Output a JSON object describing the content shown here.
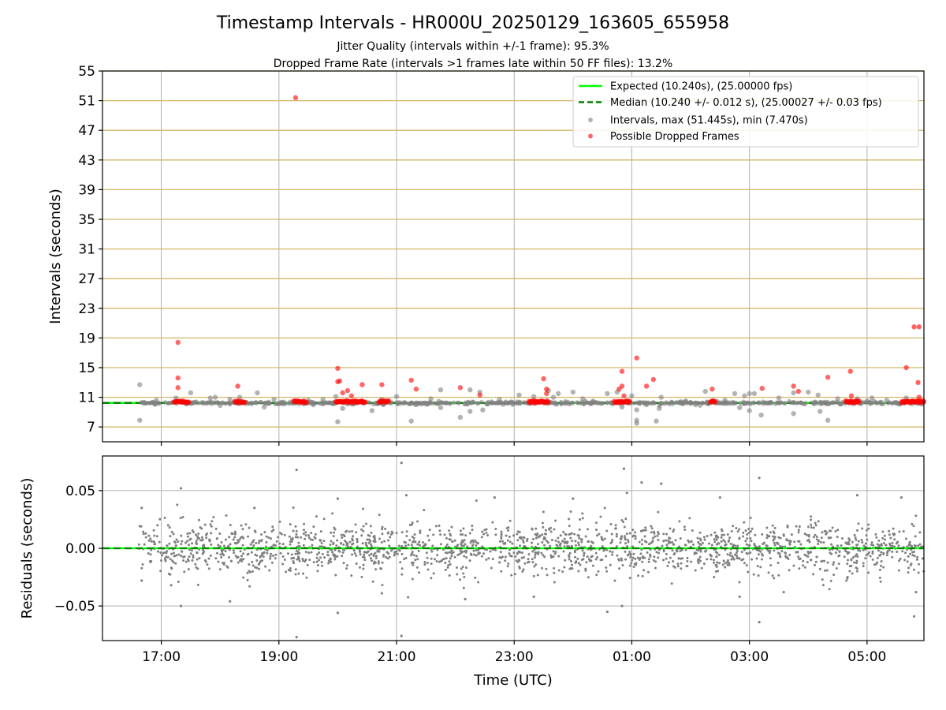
{
  "chart_data": [
    {
      "type": "scatter",
      "title": "Timestamp Intervals - HR000U_20250129_163605_655958",
      "subtitle_lines": [
        "Jitter Quality (intervals within +/-1 frame): 95.3%",
        "Dropped Frame Rate (intervals >1 frames late within 50 FF files): 13.2%"
      ],
      "xlabel": "",
      "ylabel": "Intervals (seconds)",
      "x_is_time_utc": true,
      "xlim": [
        "16:00",
        "05:58"
      ],
      "ylim": [
        5.0,
        55.0
      ],
      "yticks": [
        7,
        11,
        15,
        19,
        23,
        27,
        31,
        35,
        39,
        43,
        47,
        51,
        55
      ],
      "grid": true,
      "horizontal_bands_color": "#d4b66a",
      "legend_position": "top-right",
      "legend": [
        "Expected (10.240s), (25.00000 fps)",
        "Median (10.240 +/- 0.012 s), (25.00027 +/- 0.03 fps)",
        "Intervals, max (51.445s), min (7.470s)",
        "Possible Dropped Frames"
      ],
      "expected_interval": 10.24,
      "median_interval": 10.24,
      "series": [
        {
          "name": "Intervals, max (51.445s), min (7.470s)",
          "color": "#808080",
          "points": [
            [
              "16:38",
              12.7
            ],
            [
              "16:38",
              7.9
            ],
            [
              "16:55",
              10.6
            ],
            [
              "17:15",
              10.9
            ],
            [
              "17:30",
              11.6
            ],
            [
              "17:50",
              10.9
            ],
            [
              "17:55",
              11.0
            ],
            [
              "18:00",
              9.9
            ],
            [
              "18:10",
              10.7
            ],
            [
              "18:20",
              11.0
            ],
            [
              "18:38",
              11.6
            ],
            [
              "18:45",
              9.7
            ],
            [
              "18:55",
              10.7
            ],
            [
              "19:30",
              10.6
            ],
            [
              "19:35",
              10.0
            ],
            [
              "19:45",
              10.7
            ],
            [
              "19:58",
              11.1
            ],
            [
              "20:00",
              7.7
            ],
            [
              "20:05",
              9.5
            ],
            [
              "20:35",
              9.2
            ],
            [
              "20:45",
              10.7
            ],
            [
              "21:00",
              11.1
            ],
            [
              "21:15",
              7.8
            ],
            [
              "21:20",
              10.0
            ],
            [
              "21:35",
              10.8
            ],
            [
              "21:45",
              12.0
            ],
            [
              "21:45",
              9.6
            ],
            [
              "22:05",
              8.3
            ],
            [
              "22:15",
              12.0
            ],
            [
              "22:15",
              9.1
            ],
            [
              "22:25",
              11.7
            ],
            [
              "22:28",
              9.3
            ],
            [
              "22:45",
              10.7
            ],
            [
              "23:05",
              11.3
            ],
            [
              "23:20",
              11.1
            ],
            [
              "23:35",
              11.9
            ],
            [
              "23:40",
              11.0
            ],
            [
              "23:45",
              11.5
            ],
            [
              "24:00",
              11.7
            ],
            [
              "24:10",
              10.8
            ],
            [
              "24:35",
              11.5
            ],
            [
              "24:45",
              11.7
            ],
            [
              "24:50",
              9.7
            ],
            [
              "25:00",
              11.2
            ],
            [
              "25:05",
              9.3
            ],
            [
              "25:05",
              7.9
            ],
            [
              "25:05",
              7.5
            ],
            [
              "25:15",
              10.0
            ],
            [
              "25:25",
              7.8
            ],
            [
              "25:28",
              9.5
            ],
            [
              "25:30",
              11.0
            ],
            [
              "25:55",
              10.5
            ],
            [
              "26:05",
              10.0
            ],
            [
              "26:15",
              11.8
            ],
            [
              "26:35",
              10.6
            ],
            [
              "26:45",
              11.5
            ],
            [
              "26:50",
              9.6
            ],
            [
              "26:55",
              11.2
            ],
            [
              "27:00",
              11.5
            ],
            [
              "27:00",
              9.2
            ],
            [
              "27:05",
              11.5
            ],
            [
              "27:12",
              8.6
            ],
            [
              "27:30",
              10.9
            ],
            [
              "27:45",
              11.6
            ],
            [
              "27:45",
              8.8
            ],
            [
              "28:00",
              11.7
            ],
            [
              "28:10",
              11.3
            ],
            [
              "28:12",
              9.1
            ],
            [
              "28:20",
              7.9
            ],
            [
              "28:30",
              10.8
            ],
            [
              "28:50",
              10.8
            ],
            [
              "29:00",
              10.5
            ],
            [
              "29:05",
              10.9
            ],
            [
              "29:20",
              10.6
            ],
            [
              "29:40",
              10.9
            ]
          ]
        },
        {
          "name": "Possible Dropped Frames",
          "color": "#ff0000",
          "points": [
            [
              "17:17",
              18.4
            ],
            [
              "17:17",
              13.6
            ],
            [
              "17:17",
              12.3
            ],
            [
              "18:18",
              12.5
            ],
            [
              "19:17",
              51.4
            ],
            [
              "20:00",
              14.9
            ],
            [
              "20:00",
              13.1
            ],
            [
              "20:02",
              13.2
            ],
            [
              "20:05",
              11.6
            ],
            [
              "20:10",
              11.9
            ],
            [
              "20:14",
              11.2
            ],
            [
              "20:25",
              12.7
            ],
            [
              "20:45",
              12.7
            ],
            [
              "21:15",
              13.3
            ],
            [
              "21:20",
              12.1
            ],
            [
              "22:05",
              12.3
            ],
            [
              "22:25",
              11.3
            ],
            [
              "23:30",
              13.5
            ],
            [
              "23:33",
              12.1
            ],
            [
              "23:33",
              11.5
            ],
            [
              "24:47",
              12.1
            ],
            [
              "24:50",
              14.5
            ],
            [
              "24:50",
              12.5
            ],
            [
              "24:52",
              11.2
            ],
            [
              "25:05",
              16.3
            ],
            [
              "25:15",
              12.5
            ],
            [
              "25:22",
              13.4
            ],
            [
              "26:22",
              12.1
            ],
            [
              "27:13",
              12.2
            ],
            [
              "27:45",
              12.5
            ],
            [
              "27:50",
              11.8
            ],
            [
              "28:20",
              13.7
            ],
            [
              "28:43",
              14.5
            ],
            [
              "28:44",
              11.2
            ],
            [
              "29:40",
              15.0
            ],
            [
              "29:48",
              20.5
            ],
            [
              "29:53",
              20.5
            ],
            [
              "29:52",
              13.0
            ],
            [
              "29:53",
              11.0
            ]
          ],
          "dense_clusters_at_about_10_4": [
            [
              "17:13",
              "17:28"
            ],
            [
              "18:15",
              "18:25"
            ],
            [
              "19:15",
              "19:28"
            ],
            [
              "19:58",
              "20:28"
            ],
            [
              "20:42",
              "20:52"
            ],
            [
              "23:15",
              "23:35"
            ],
            [
              "24:42",
              "24:58"
            ],
            [
              "26:20",
              "26:25"
            ],
            [
              "28:38",
              "28:52"
            ],
            [
              "29:35",
              "29:58"
            ]
          ]
        }
      ]
    },
    {
      "type": "scatter",
      "title": "",
      "xlabel": "Time (UTC)",
      "ylabel": "Residuals (seconds)",
      "xlim": [
        "16:00",
        "05:58"
      ],
      "ylim": [
        -0.08,
        0.08
      ],
      "yticks": [
        -0.05,
        0.0,
        0.05
      ],
      "ytick_labels": [
        "−0.05",
        "0.00",
        "0.05"
      ],
      "xticks": [
        "17:00",
        "19:00",
        "21:00",
        "23:00",
        "01:00",
        "03:00",
        "05:00"
      ],
      "grid": true,
      "series": [
        {
          "name": "",
          "color": "#808080",
          "points_note": "about 1900 residuals centred on 0.00, mostly within ±0.03 s",
          "points": [
            [
              "19:18",
              -0.077
            ],
            [
              "19:18",
              0.068
            ],
            [
              "21:05",
              0.074
            ],
            [
              "21:05",
              -0.076
            ],
            [
              "20:00",
              -0.056
            ],
            [
              "20:00",
              0.043
            ],
            [
              "17:20",
              0.052
            ],
            [
              "17:20",
              -0.05
            ],
            [
              "24:52",
              0.069
            ],
            [
              "25:10",
              0.057
            ],
            [
              "25:30",
              0.056
            ],
            [
              "27:10",
              0.061
            ],
            [
              "27:10",
              -0.064
            ],
            [
              "29:48",
              -0.059
            ],
            [
              "24:35",
              -0.055
            ],
            [
              "24:50",
              -0.05
            ],
            [
              "16:40",
              0.035
            ],
            [
              "16:40",
              -0.028
            ],
            [
              "17:10",
              -0.032
            ],
            [
              "18:10",
              -0.046
            ],
            [
              "18:35",
              0.035
            ],
            [
              "20:45",
              -0.039
            ],
            [
              "21:10",
              0.046
            ],
            [
              "22:10",
              -0.044
            ],
            [
              "22:40",
              0.044
            ],
            [
              "23:20",
              -0.042
            ],
            [
              "24:00",
              0.043
            ],
            [
              "24:55",
              0.048
            ],
            [
              "26:30",
              0.044
            ],
            [
              "26:50",
              -0.042
            ],
            [
              "27:35",
              -0.038
            ],
            [
              "28:50",
              0.046
            ],
            [
              "29:35",
              0.044
            ],
            [
              "29:50",
              -0.038
            ]
          ]
        }
      ],
      "reference_line": 0.0
    }
  ],
  "colors": {
    "expected": "#00ff00",
    "median": "#008000",
    "band": "#d4b66a",
    "grid": "#b0b0b0",
    "interval_points": "#808080",
    "dropped_points": "#ff0000"
  }
}
